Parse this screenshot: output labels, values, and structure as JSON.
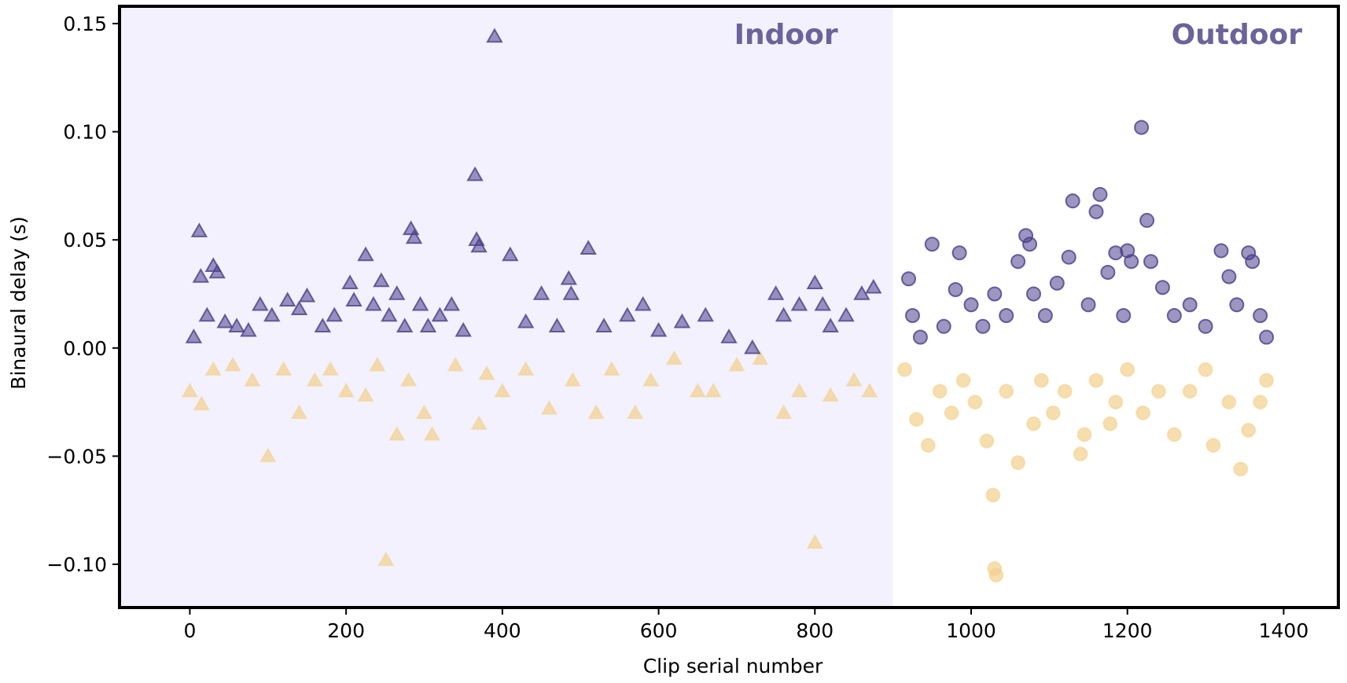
{
  "chart_data": {
    "type": "scatter",
    "title": "",
    "xlabel": "Clip serial number",
    "ylabel": "Binaural delay (s)",
    "xlim": [
      -90,
      1470
    ],
    "ylim": [
      -0.12,
      0.158
    ],
    "x_ticks": [
      "0",
      "200",
      "400",
      "600",
      "800",
      "1000",
      "1200",
      "1400"
    ],
    "x_tick_values": [
      0,
      200,
      400,
      600,
      800,
      1000,
      1200,
      1400
    ],
    "y_ticks": [
      "−0.10",
      "−0.05",
      "0.00",
      "0.05",
      "0.10",
      "0.15"
    ],
    "y_tick_values": [
      -0.1,
      -0.05,
      0.0,
      0.05,
      0.1,
      0.15
    ],
    "grid": false,
    "regions": [
      {
        "label": "Indoor",
        "x_range": [
          -90,
          900
        ],
        "shaded": true,
        "color": "#f3f1fd"
      },
      {
        "label": "Outdoor",
        "x_range": [
          900,
          1470
        ],
        "shaded": false,
        "color": "#ffffff"
      }
    ],
    "colors": {
      "positive": "#4b3f8c",
      "negative": "#f2d08c",
      "region_label": "#6b6399"
    },
    "series": [
      {
        "marker": "triangle",
        "color": "#4b3f8c",
        "region": "Indoor",
        "x": [
          5,
          12,
          14,
          22,
          30,
          35,
          45,
          60,
          75,
          90,
          105,
          125,
          140,
          150,
          170,
          185,
          205,
          210,
          225,
          235,
          245,
          255,
          265,
          275,
          283,
          287,
          295,
          305,
          320,
          335,
          350,
          365,
          367,
          370,
          390,
          410,
          430,
          450,
          470,
          485,
          488,
          510,
          530,
          560,
          580,
          600,
          630,
          660,
          690,
          720,
          750,
          760,
          780,
          800,
          810,
          820,
          840,
          860,
          875
        ],
        "y": [
          0.005,
          0.054,
          0.033,
          0.015,
          0.038,
          0.035,
          0.012,
          0.01,
          0.008,
          0.02,
          0.015,
          0.022,
          0.018,
          0.024,
          0.01,
          0.015,
          0.03,
          0.022,
          0.043,
          0.02,
          0.031,
          0.015,
          0.025,
          0.01,
          0.055,
          0.051,
          0.02,
          0.01,
          0.015,
          0.02,
          0.008,
          0.08,
          0.05,
          0.047,
          0.144,
          0.043,
          0.012,
          0.025,
          0.01,
          0.032,
          0.025,
          0.046,
          0.01,
          0.015,
          0.02,
          0.008,
          0.012,
          0.015,
          0.005,
          0.0,
          0.025,
          0.015,
          0.02,
          0.03,
          0.02,
          0.01,
          0.015,
          0.025,
          0.028
        ]
      },
      {
        "marker": "triangle",
        "color": "#f2d08c",
        "region": "Indoor",
        "x": [
          0,
          15,
          30,
          55,
          80,
          100,
          120,
          140,
          160,
          180,
          200,
          225,
          240,
          251,
          265,
          280,
          300,
          310,
          340,
          370,
          380,
          400,
          430,
          460,
          490,
          520,
          540,
          570,
          590,
          620,
          650,
          670,
          700,
          730,
          760,
          780,
          800,
          820,
          850,
          870
        ],
        "y": [
          -0.02,
          -0.026,
          -0.01,
          -0.008,
          -0.015,
          -0.05,
          -0.01,
          -0.03,
          -0.015,
          -0.01,
          -0.02,
          -0.022,
          -0.008,
          -0.098,
          -0.04,
          -0.015,
          -0.03,
          -0.04,
          -0.008,
          -0.035,
          -0.012,
          -0.02,
          -0.01,
          -0.028,
          -0.015,
          -0.03,
          -0.01,
          -0.03,
          -0.015,
          -0.005,
          -0.02,
          -0.02,
          -0.008,
          -0.005,
          -0.03,
          -0.02,
          -0.09,
          -0.022,
          -0.015,
          -0.02
        ]
      },
      {
        "marker": "circle",
        "color": "#4b3f8c",
        "region": "Outdoor",
        "x": [
          920,
          925,
          935,
          950,
          965,
          980,
          985,
          1000,
          1015,
          1030,
          1045,
          1060,
          1070,
          1075,
          1080,
          1095,
          1110,
          1125,
          1130,
          1150,
          1160,
          1165,
          1175,
          1185,
          1195,
          1200,
          1205,
          1218,
          1225,
          1230,
          1245,
          1260,
          1280,
          1300,
          1320,
          1330,
          1340,
          1355,
          1360,
          1370,
          1378
        ],
        "y": [
          0.032,
          0.015,
          0.005,
          0.048,
          0.01,
          0.027,
          0.044,
          0.02,
          0.01,
          0.025,
          0.015,
          0.04,
          0.052,
          0.048,
          0.025,
          0.015,
          0.03,
          0.042,
          0.068,
          0.02,
          0.063,
          0.071,
          0.035,
          0.044,
          0.015,
          0.045,
          0.04,
          0.102,
          0.059,
          0.04,
          0.028,
          0.015,
          0.02,
          0.01,
          0.045,
          0.033,
          0.02,
          0.044,
          0.04,
          0.015,
          0.005
        ]
      },
      {
        "marker": "circle",
        "color": "#f2d08c",
        "region": "Outdoor",
        "x": [
          915,
          930,
          945,
          960,
          975,
          990,
          1005,
          1020,
          1028,
          1030,
          1032,
          1045,
          1060,
          1080,
          1090,
          1105,
          1120,
          1140,
          1145,
          1160,
          1178,
          1185,
          1200,
          1220,
          1240,
          1260,
          1280,
          1300,
          1310,
          1330,
          1345,
          1355,
          1370,
          1378
        ],
        "y": [
          -0.01,
          -0.033,
          -0.045,
          -0.02,
          -0.03,
          -0.015,
          -0.025,
          -0.043,
          -0.068,
          -0.102,
          -0.105,
          -0.02,
          -0.053,
          -0.035,
          -0.015,
          -0.03,
          -0.02,
          -0.049,
          -0.04,
          -0.015,
          -0.035,
          -0.025,
          -0.01,
          -0.03,
          -0.02,
          -0.04,
          -0.02,
          -0.01,
          -0.045,
          -0.025,
          -0.056,
          -0.038,
          -0.025,
          -0.015
        ]
      }
    ]
  }
}
